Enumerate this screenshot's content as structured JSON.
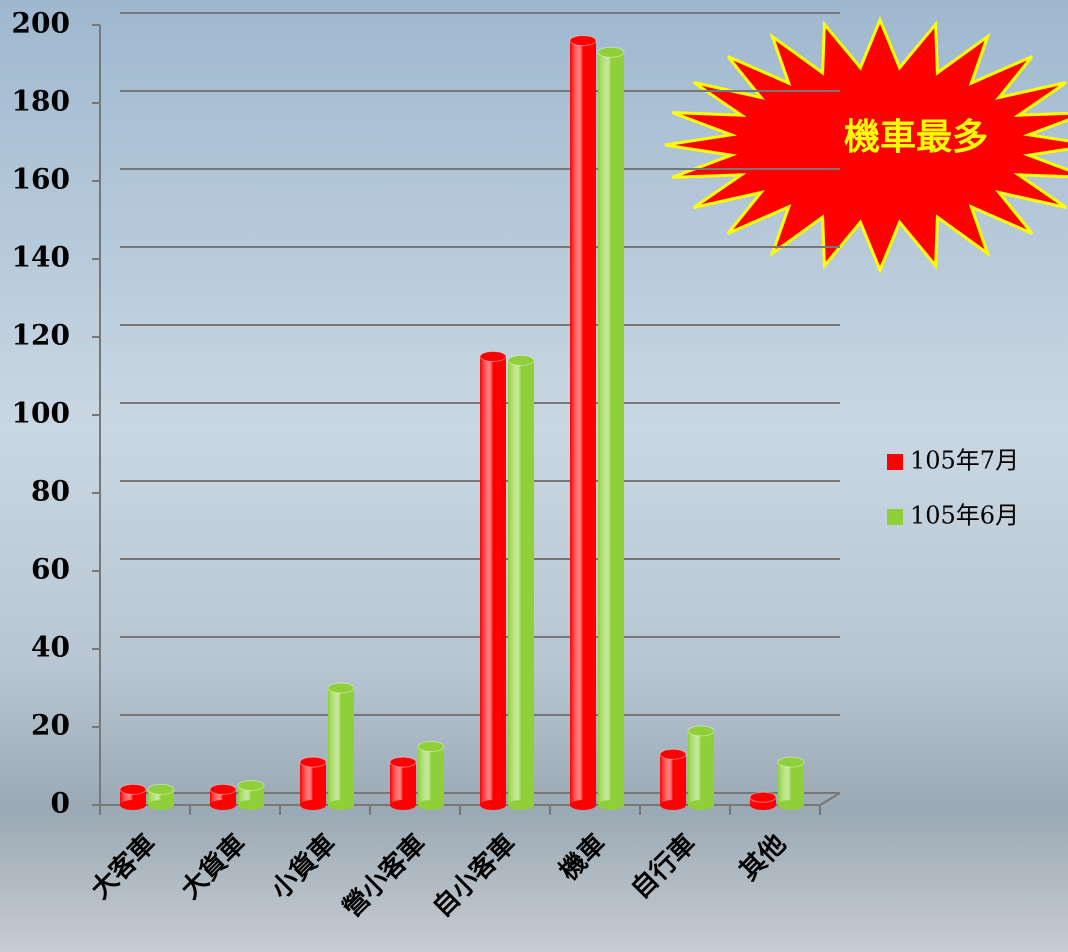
{
  "chart_data": {
    "type": "bar",
    "categories": [
      "大客車",
      "大貨車",
      "小貨車",
      "營小客車",
      "自小客車",
      "機車",
      "自行車",
      "其他"
    ],
    "series": [
      {
        "name": "105年7月",
        "color": "#ff0000",
        "values": [
          4,
          4,
          11,
          11,
          115,
          196,
          13,
          2
        ]
      },
      {
        "name": "105年6月",
        "color": "#8fd03a",
        "values": [
          4,
          5,
          30,
          15,
          114,
          193,
          19,
          11
        ]
      }
    ],
    "ylim": [
      0,
      200
    ],
    "yticks": [
      0,
      20,
      40,
      60,
      80,
      100,
      120,
      140,
      160,
      180,
      200
    ],
    "grid": true,
    "legend": "right",
    "annotation": "機車最多"
  }
}
